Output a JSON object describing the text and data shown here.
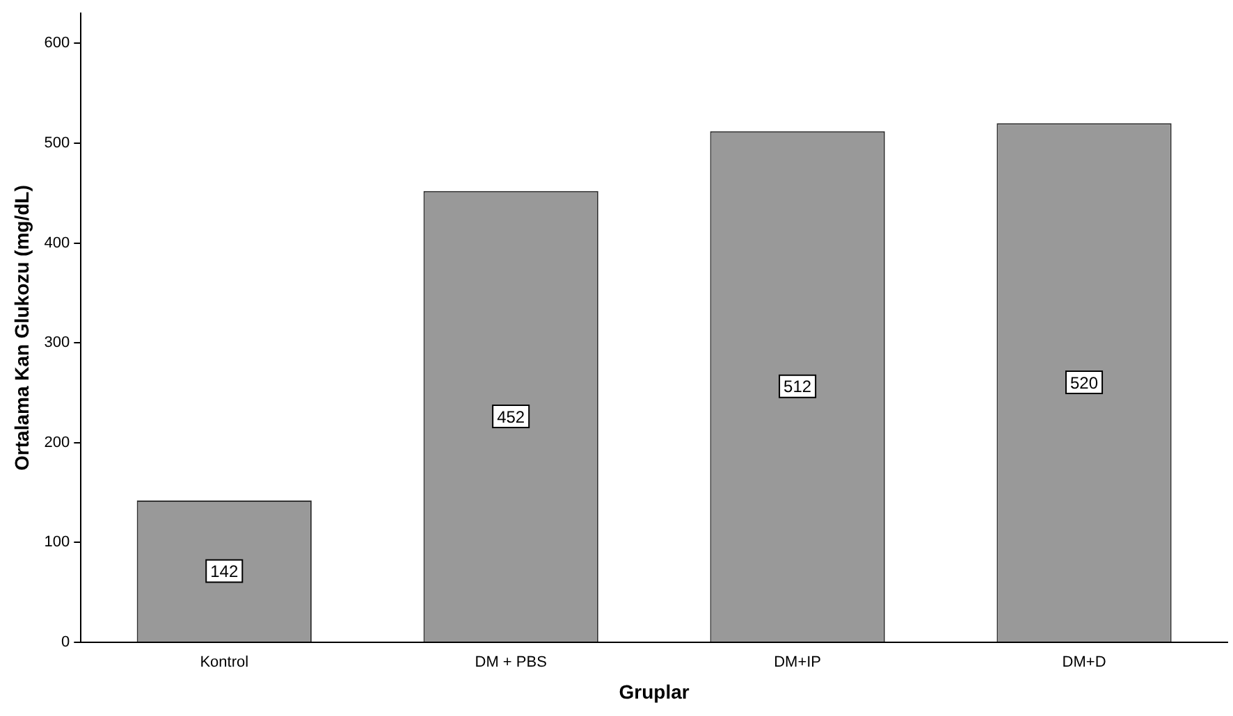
{
  "chart_data": {
    "type": "bar",
    "xlabel": "Gruplar",
    "ylabel": "Ortalama Kan Glukozu (mg/dL)",
    "categories": [
      "Kontrol",
      "DM + PBS",
      "DM+IP",
      "DM+D"
    ],
    "values": [
      142,
      452,
      512,
      520
    ],
    "color": "#999999",
    "ylim": [
      0,
      630
    ],
    "yticks": [
      0,
      100,
      200,
      300,
      400,
      500,
      600
    ],
    "data_labels": true
  }
}
